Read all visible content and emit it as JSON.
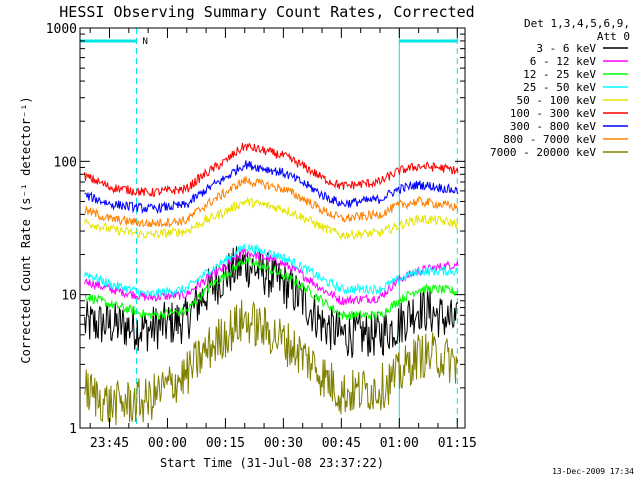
{
  "chart_data": {
    "type": "line",
    "title": "HESSI Observing Summary Count Rates, Corrected",
    "xlabel": "Start Time (31-Jul-08 23:37:22)",
    "ylabel": "Corrected Count Rate (s⁻¹ detector⁻¹)",
    "yscale": "log",
    "ylim": [
      1,
      1000
    ],
    "xlim": [
      "23:37:22",
      "01:17:00"
    ],
    "x_ticks": [
      "23:45",
      "00:00",
      "00:15",
      "00:30",
      "00:45",
      "01:00",
      "01:15"
    ],
    "y_ticks": [
      "1",
      "10",
      "100",
      "1000"
    ],
    "grid": false,
    "legend_placement": "right",
    "legend_header": [
      "Det 1,3,4,5,6,9,",
      "Att 0"
    ],
    "timestamp": "13-Dec-2009 17:34",
    "flags": [
      {
        "label": "N",
        "start": "23:37:22",
        "end": "23:52",
        "color": "#00e5e5"
      },
      {
        "label": "",
        "start": "01:00",
        "end": "01:15",
        "color": "#00e5e5"
      }
    ],
    "x_hours": [
      -0.377,
      -0.25,
      -0.083,
      0.083,
      0.25,
      0.333,
      0.5,
      0.667,
      0.75,
      0.917,
      1.0,
      1.083,
      1.167,
      1.25
    ],
    "x_hours_note_times": [
      "23:37",
      "23:45",
      "23:55",
      "00:05",
      "00:15",
      "00:20",
      "00:30",
      "00:40",
      "00:45",
      "00:55",
      "01:00",
      "01:05",
      "01:10",
      "01:15"
    ],
    "series": [
      {
        "name": "3 - 6 keV",
        "color": "#000000",
        "values": [
          6,
          6,
          5.5,
          6.5,
          14,
          17,
          12,
          6,
          5,
          5,
          6,
          8,
          7,
          6
        ]
      },
      {
        "name": "6 - 12 keV",
        "color": "#ff00ff",
        "values": [
          13,
          11,
          9.5,
          10,
          16,
          21,
          17,
          11,
          9,
          9.5,
          13,
          15,
          16,
          17
        ]
      },
      {
        "name": "12 - 25 keV",
        "color": "#00ff00",
        "values": [
          10,
          8.5,
          7,
          7.5,
          14,
          18,
          14,
          9,
          7,
          7,
          9,
          11,
          11,
          10.5
        ]
      },
      {
        "name": "25 - 50 keV",
        "color": "#00ffff",
        "values": [
          15,
          12,
          10,
          11,
          18,
          23,
          19,
          13,
          11,
          11,
          13,
          15,
          15,
          15
        ]
      },
      {
        "name": "50 - 100 keV",
        "color": "#e5e500",
        "values": [
          36,
          31,
          28,
          30,
          42,
          50,
          44,
          32,
          28,
          29,
          33,
          37,
          36,
          34
        ]
      },
      {
        "name": "100 - 300 keV",
        "color": "#ff0000",
        "values": [
          80,
          64,
          58,
          62,
          100,
          130,
          110,
          75,
          65,
          70,
          85,
          92,
          90,
          85
        ]
      },
      {
        "name": "300 - 800 keV",
        "color": "#0000ff",
        "values": [
          57,
          48,
          44,
          47,
          75,
          95,
          82,
          56,
          48,
          52,
          62,
          67,
          64,
          60
        ]
      },
      {
        "name": "800 - 7000 keV",
        "color": "#ff8000",
        "values": [
          44,
          37,
          34,
          36,
          58,
          72,
          62,
          43,
          37,
          40,
          47,
          50,
          48,
          45
        ]
      },
      {
        "name": "7000 - 20000 keV",
        "color": "#808000",
        "values": [
          2,
          1.5,
          1.6,
          2.5,
          5,
          6.5,
          4.5,
          2.5,
          1.8,
          2,
          2.5,
          3.5,
          3.5,
          3
        ]
      }
    ]
  }
}
